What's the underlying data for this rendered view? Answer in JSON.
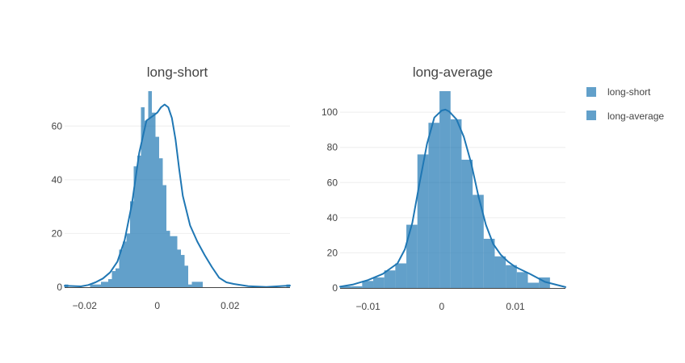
{
  "colors": {
    "bar": "#1f77b4",
    "curve": "#1f77b4",
    "grid": "#eeeeee",
    "text": "#444444"
  },
  "legend": {
    "items": [
      "long-short",
      "long-average"
    ]
  },
  "chart_data": [
    {
      "type": "bar",
      "subtype": "histogram-with-density",
      "title": "long-short",
      "xlim": [
        -0.0255,
        0.0365
      ],
      "ylim": [
        0,
        73
      ],
      "xticks": [
        -0.02,
        0,
        0.02
      ],
      "xtick_labels": [
        "−0.02",
        "0",
        "0.02"
      ],
      "yticks": [
        0,
        20,
        40,
        60
      ],
      "ytick_labels": [
        "0",
        "20",
        "40",
        "60"
      ],
      "grid": true,
      "bin_edges": [
        -0.0255,
        -0.0245,
        -0.0235,
        -0.0225,
        -0.0215,
        -0.0205,
        -0.0195,
        -0.0185,
        -0.0175,
        -0.0165,
        -0.0155,
        -0.0145,
        -0.0135,
        -0.0125,
        -0.0115,
        -0.0105,
        -0.0095,
        -0.0085,
        -0.0075,
        -0.0065,
        -0.0055,
        -0.0045,
        -0.0035,
        -0.0025,
        -0.0015,
        -0.0005,
        0.0005,
        0.0015,
        0.0025,
        0.0035,
        0.0045,
        0.0055,
        0.0065,
        0.0075,
        0.0085,
        0.0095,
        0.0105,
        0.0115,
        0.0125,
        0.0135,
        0.0145,
        0.0155,
        0.0165,
        0.0175,
        0.0185,
        0.0195,
        0.0205,
        0.0215,
        0.0225,
        0.0235,
        0.0245,
        0.0255,
        0.0265,
        0.0275,
        0.0285,
        0.0295,
        0.0305,
        0.0315,
        0.0325,
        0.0335,
        0.0345,
        0.0355,
        0.0365
      ],
      "counts": [
        1,
        0,
        0,
        0,
        0,
        0,
        0,
        1,
        1,
        1,
        2,
        2,
        3,
        6,
        7,
        14,
        17,
        20,
        32,
        45,
        49,
        67,
        62,
        73,
        65,
        56,
        48,
        38,
        21,
        19,
        19,
        14,
        12,
        8,
        1,
        2,
        2,
        2,
        0,
        0,
        0,
        0,
        0,
        0,
        0,
        0,
        0,
        0,
        0,
        0,
        0,
        0,
        0,
        0,
        0,
        0,
        0,
        0,
        0,
        0,
        0,
        1
      ],
      "curve": {
        "x": [
          -0.0255,
          -0.021,
          -0.019,
          -0.017,
          -0.015,
          -0.013,
          -0.011,
          -0.009,
          -0.007,
          -0.005,
          -0.003,
          -0.001,
          0.0,
          0.001,
          0.002,
          0.003,
          0.004,
          0.005,
          0.006,
          0.007,
          0.009,
          0.011,
          0.013,
          0.015,
          0.017,
          0.019,
          0.021,
          0.025,
          0.03,
          0.0365
        ],
        "y": [
          0.5,
          0.3,
          0.8,
          1.8,
          3.2,
          5.5,
          9.5,
          17.5,
          31,
          50,
          62,
          64,
          65,
          67,
          68,
          67,
          63,
          55,
          44,
          34,
          23,
          17,
          12,
          7.5,
          3.5,
          1.8,
          1.2,
          0.4,
          0.1,
          0.6
        ]
      }
    },
    {
      "type": "bar",
      "subtype": "histogram-with-density",
      "title": "long-average",
      "xlim": [
        -0.0138,
        0.0168
      ],
      "ylim": [
        0,
        112
      ],
      "xticks": [
        -0.01,
        0,
        0.01
      ],
      "xtick_labels": [
        "−0.01",
        "0",
        "0.01"
      ],
      "yticks": [
        0,
        20,
        40,
        60,
        80,
        100
      ],
      "ytick_labels": [
        "0",
        "20",
        "40",
        "60",
        "80",
        "100"
      ],
      "grid": true,
      "bin_edges": [
        -0.0138,
        -0.0123,
        -0.0108,
        -0.0093,
        -0.0078,
        -0.0063,
        -0.0048,
        -0.0033,
        -0.0018,
        -0.0003,
        0.0012,
        0.0027,
        0.0042,
        0.0057,
        0.0072,
        0.0087,
        0.0102,
        0.0117,
        0.0132,
        0.0147,
        0.0162
      ],
      "counts": [
        1,
        1,
        4,
        6,
        10,
        14,
        36,
        76,
        94,
        112,
        96,
        73,
        53,
        28,
        18,
        13,
        9,
        3,
        6,
        0
      ],
      "curve": {
        "x": [
          -0.0138,
          -0.012,
          -0.01,
          -0.008,
          -0.006,
          -0.005,
          -0.004,
          -0.003,
          -0.002,
          -0.001,
          0.0,
          0.0005,
          0.001,
          0.002,
          0.003,
          0.004,
          0.005,
          0.006,
          0.007,
          0.008,
          0.009,
          0.01,
          0.012,
          0.014,
          0.0168
        ],
        "y": [
          0.8,
          2,
          4.5,
          8,
          14,
          22,
          37,
          60,
          82,
          97,
          101,
          101.5,
          100.5,
          96,
          86,
          71,
          52,
          36,
          25,
          19,
          15,
          12,
          8,
          3.5,
          0.5
        ]
      }
    }
  ]
}
